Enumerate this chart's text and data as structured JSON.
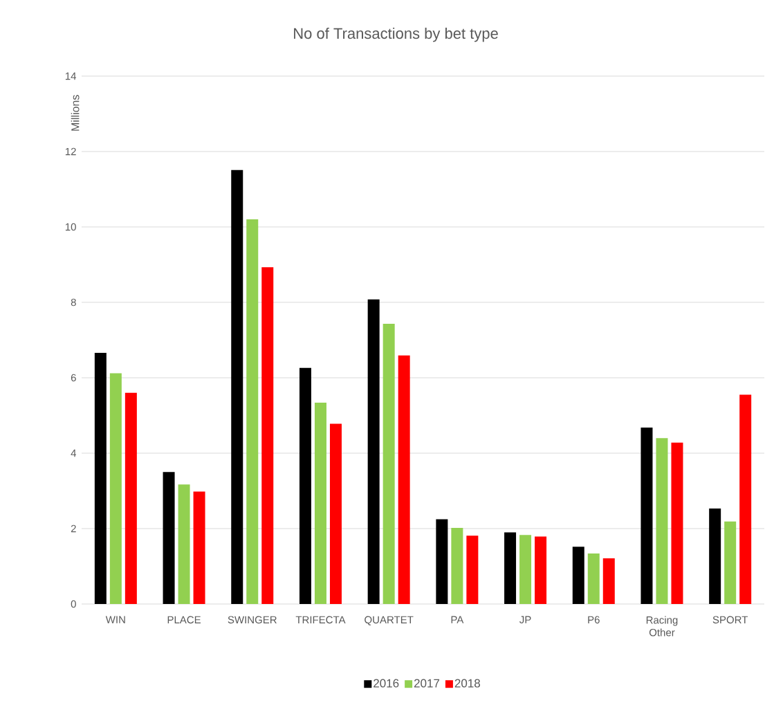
{
  "chart_data": {
    "type": "bar",
    "title": "No of Transactions by bet type",
    "ylabel": "Millions",
    "categories": [
      "WIN",
      "PLACE",
      "SWINGER",
      "TRIFECTA",
      "QUARTET",
      "PA",
      "JP",
      "P6",
      "Racing Other",
      "SPORT"
    ],
    "series": [
      {
        "name": "2016",
        "color": "#000000",
        "values": [
          6.66,
          3.5,
          11.51,
          6.26,
          8.08,
          2.25,
          1.9,
          1.52,
          4.68,
          2.53
        ]
      },
      {
        "name": "2017",
        "color": "#92d050",
        "values": [
          6.12,
          3.17,
          10.2,
          5.34,
          7.43,
          2.02,
          1.83,
          1.34,
          4.4,
          2.19
        ]
      },
      {
        "name": "2018",
        "color": "#ff0000",
        "values": [
          5.6,
          2.98,
          8.93,
          4.78,
          6.59,
          1.81,
          1.79,
          1.21,
          4.28,
          5.55
        ]
      }
    ],
    "ylim": [
      0,
      14
    ],
    "yticks": [
      0,
      2,
      4,
      6,
      8,
      10,
      12,
      14
    ],
    "grid": "y",
    "legend": "bottom"
  }
}
